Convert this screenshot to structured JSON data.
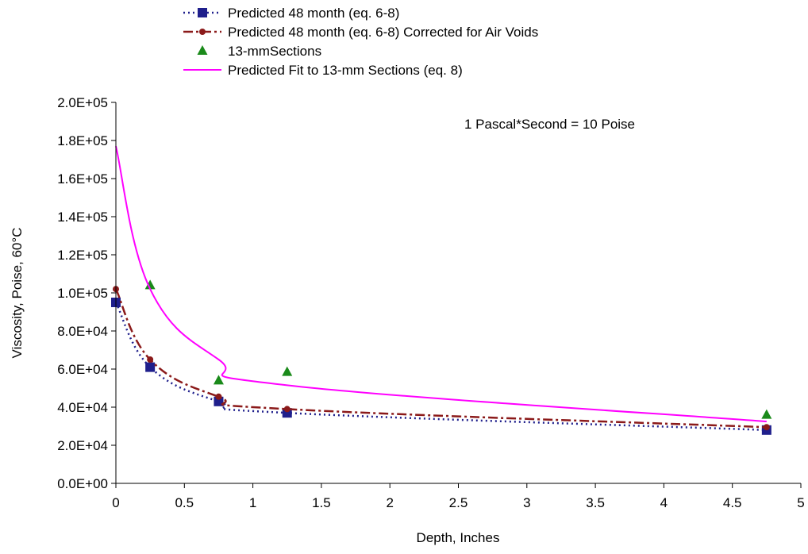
{
  "chart_data": {
    "type": "line",
    "xlabel": "Depth, Inches",
    "ylabel": "Viscosity, Poise, 60°C",
    "xlim": [
      0,
      5
    ],
    "ylim": [
      0,
      200000
    ],
    "x_ticks": [
      0,
      0.5,
      1,
      1.5,
      2,
      2.5,
      3,
      3.5,
      4,
      4.5,
      5
    ],
    "x_tick_labels": [
      "0",
      "0.5",
      "1",
      "1.5",
      "2",
      "2.5",
      "3",
      "3.5",
      "4",
      "4.5",
      "5"
    ],
    "y_ticks": [
      0,
      20000,
      40000,
      60000,
      80000,
      100000,
      120000,
      140000,
      160000,
      180000,
      200000
    ],
    "y_tick_labels": [
      "0.0E+00",
      "2.0E+04",
      "4.0E+04",
      "6.0E+04",
      "8.0E+04",
      "1.0E+05",
      "1.2E+05",
      "1.4E+05",
      "1.6E+05",
      "1.8E+05",
      "2.0E+05"
    ],
    "grid": false,
    "legend_position": "top",
    "annotation": "1 Pascal*Second = 10 Poise",
    "series": [
      {
        "name": "Predicted 48 month (eq. 6-8)",
        "style": "dotted-line-square-markers",
        "color": "#1f1f8c",
        "x": [
          0,
          0.25,
          0.75,
          1.25,
          4.75
        ],
        "y": [
          95000,
          61000,
          43000,
          37000,
          28000
        ]
      },
      {
        "name": "Predicted 48 month (eq. 6-8) Corrected for Air Voids",
        "style": "dashdot-line-circle-markers",
        "color": "#8b1a1a",
        "x": [
          0,
          0.25,
          0.75,
          1.25,
          4.75
        ],
        "y": [
          102000,
          65000,
          45500,
          39000,
          29500
        ]
      },
      {
        "name": "13-mmSections",
        "style": "triangle-markers-only",
        "color": "#1a8a1a",
        "x": [
          0.25,
          0.75,
          1.25,
          4.75
        ],
        "y": [
          104000,
          54000,
          58500,
          36000
        ]
      },
      {
        "name": "Predicted Fit to 13-mm Sections (eq. 8)",
        "style": "solid-line",
        "color": "#ff00ff",
        "x": [
          0,
          0.25,
          0.75,
          1.25,
          4.75
        ],
        "y": [
          177000,
          102000,
          65000,
          51500,
          32500
        ]
      }
    ]
  }
}
